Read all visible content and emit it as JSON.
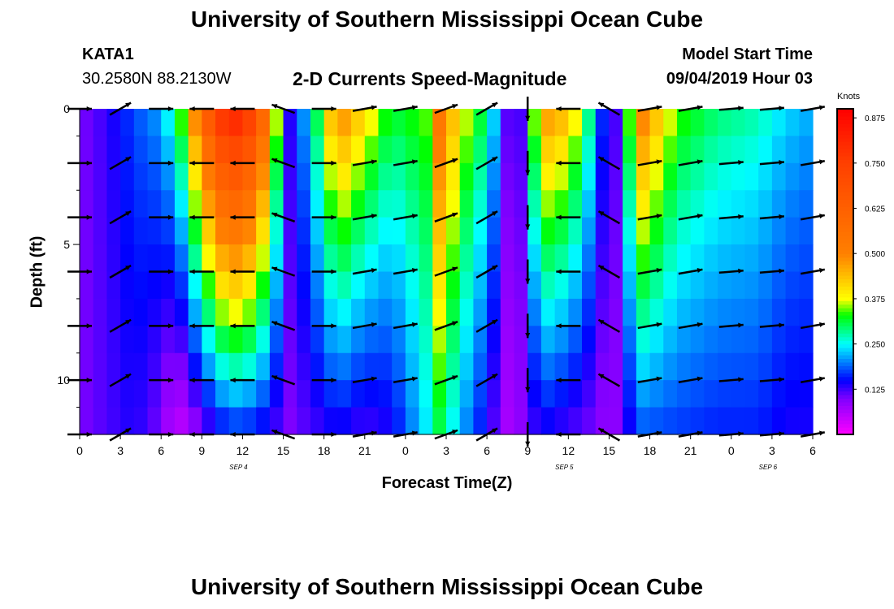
{
  "header": {
    "title": "University of Southern Mississippi Ocean Cube",
    "footer_title": "University of Southern Mississippi Ocean Cube",
    "station_id": "KATA1",
    "station_coords": "30.2580N 88.2130W",
    "model_label": "Model Start Time",
    "model_time": "09/04/2019 Hour 03"
  },
  "chart_data": {
    "type": "heatmap",
    "title": "2-D Currents Speed-Magnitude",
    "xlabel": "Forecast Time(Z)",
    "ylabel": "Depth (ft)",
    "x_range_hours": [
      0,
      54
    ],
    "y_range_ft": [
      0,
      12
    ],
    "x_tick_hours": [
      0,
      3,
      6,
      9,
      12,
      15,
      18,
      21,
      24,
      27,
      30,
      33,
      36,
      39,
      42,
      45,
      48,
      51,
      54
    ],
    "x_tick_labels": [
      "0",
      "3",
      "6",
      "9",
      "12",
      "15",
      "18",
      "21",
      "0",
      "3",
      "6",
      "9",
      "12",
      "15",
      "18",
      "21",
      "0",
      "3",
      "6"
    ],
    "y_ticks": [
      0,
      5,
      10
    ],
    "y_tick_labels": [
      "0",
      "5",
      "10"
    ],
    "date_labels": [
      {
        "text": "SEP 4",
        "hour": 11.7
      },
      {
        "text": "SEP 5",
        "hour": 35.7
      },
      {
        "text": "SEP 6",
        "hour": 50.7
      }
    ],
    "colorbar": {
      "units": "Knots",
      "range": [
        0,
        0.9
      ],
      "ticks": [
        0.125,
        0.25,
        0.375,
        0.5,
        0.625,
        0.75,
        0.875
      ],
      "tick_labels": [
        "0.125",
        "0.250",
        "0.375",
        "0.500",
        "0.625",
        "0.750",
        "0.875"
      ],
      "stops": [
        {
          "v": 0.0,
          "c": "#ff00ff"
        },
        {
          "v": 0.1,
          "c": "#8000ff"
        },
        {
          "v": 0.15,
          "c": "#0000ff"
        },
        {
          "v": 0.25,
          "c": "#00ffff"
        },
        {
          "v": 0.33,
          "c": "#00ff00"
        },
        {
          "v": 0.375,
          "c": "#ffff00"
        },
        {
          "v": 0.5,
          "c": "#ff8000"
        },
        {
          "v": 0.75,
          "c": "#ff4000"
        },
        {
          "v": 0.9,
          "c": "#ff0000"
        }
      ]
    },
    "depth_levels_ft": [
      0,
      1,
      2,
      3,
      4,
      5,
      6,
      7,
      8,
      9,
      10,
      11,
      12
    ],
    "speed_profiles": [
      {
        "hour": 0,
        "surface": 0.1,
        "bottom": 0.1
      },
      {
        "hour": 2,
        "surface": 0.13,
        "bottom": 0.12
      },
      {
        "hour": 4,
        "surface": 0.18,
        "bottom": 0.14
      },
      {
        "hour": 6,
        "surface": 0.22,
        "bottom": 0.1
      },
      {
        "hour": 7,
        "surface": 0.3,
        "bottom": 0.04
      },
      {
        "hour": 8,
        "surface": 0.42,
        "bottom": 0.06
      },
      {
        "hour": 9,
        "surface": 0.62,
        "bottom": 0.1
      },
      {
        "hour": 11,
        "surface": 0.88,
        "bottom": 0.16
      },
      {
        "hour": 13,
        "surface": 0.75,
        "bottom": 0.15
      },
      {
        "hour": 14.5,
        "surface": 0.38,
        "bottom": 0.12
      },
      {
        "hour": 15.5,
        "surface": 0.14,
        "bottom": 0.1
      },
      {
        "hour": 17,
        "surface": 0.25,
        "bottom": 0.12
      },
      {
        "hour": 19,
        "surface": 0.52,
        "bottom": 0.14
      },
      {
        "hour": 21,
        "surface": 0.42,
        "bottom": 0.12
      },
      {
        "hour": 23,
        "surface": 0.32,
        "bottom": 0.14
      },
      {
        "hour": 25.5,
        "surface": 0.35,
        "bottom": 0.24
      },
      {
        "hour": 26.5,
        "surface": 0.55,
        "bottom": 0.3
      },
      {
        "hour": 28,
        "surface": 0.4,
        "bottom": 0.22
      },
      {
        "hour": 30,
        "surface": 0.3,
        "bottom": 0.14
      },
      {
        "hour": 31.5,
        "surface": 0.12,
        "bottom": 0.07
      },
      {
        "hour": 32,
        "surface": 0.06,
        "bottom": 0.06
      },
      {
        "hour": 32.7,
        "surface": 0.15,
        "bottom": 0.1
      },
      {
        "hour": 34,
        "surface": 0.5,
        "bottom": 0.14
      },
      {
        "hour": 36,
        "surface": 0.45,
        "bottom": 0.12
      },
      {
        "hour": 38,
        "surface": 0.25,
        "bottom": 0.1
      },
      {
        "hour": 39,
        "surface": 0.09,
        "bottom": 0.08
      },
      {
        "hour": 40,
        "surface": 0.16,
        "bottom": 0.1
      },
      {
        "hour": 41,
        "surface": 0.55,
        "bottom": 0.18
      },
      {
        "hour": 44,
        "surface": 0.35,
        "bottom": 0.17
      },
      {
        "hour": 47,
        "surface": 0.3,
        "bottom": 0.16
      },
      {
        "hour": 50,
        "surface": 0.28,
        "bottom": 0.16
      },
      {
        "hour": 52,
        "surface": 0.24,
        "bottom": 0.14
      },
      {
        "hour": 54,
        "surface": 0.22,
        "bottom": 0.14
      }
    ],
    "vector_hours": [
      0,
      3,
      6,
      9,
      12,
      15,
      18,
      21,
      24,
      27,
      30,
      33,
      36,
      39,
      42,
      45,
      48,
      51,
      54
    ],
    "vector_depths_ft": [
      0,
      2,
      4,
      6,
      8,
      10,
      12
    ],
    "vector_direction_deg": {
      "note": "current direction, degrees clockwise from north, per forecast hour (constant with depth except near-surface bends)",
      "hours": [
        0,
        3,
        6,
        9,
        12,
        15,
        18,
        21,
        24,
        27,
        30,
        33,
        36,
        39,
        42,
        45,
        48,
        51,
        54
      ],
      "deg": [
        90,
        60,
        90,
        270,
        270,
        290,
        90,
        80,
        80,
        70,
        60,
        180,
        270,
        300,
        80,
        80,
        85,
        85,
        80
      ]
    }
  }
}
